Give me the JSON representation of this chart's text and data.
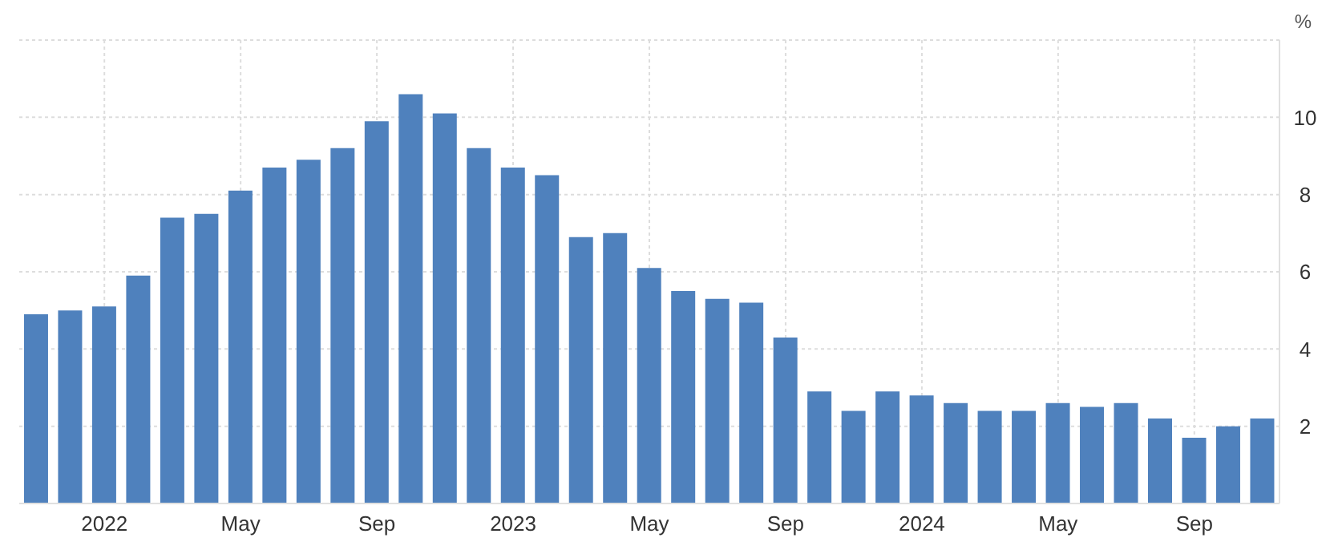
{
  "chart_data": {
    "type": "bar",
    "ylabel": "%",
    "categories": [
      null,
      null,
      "2022",
      null,
      null,
      null,
      "May",
      null,
      null,
      null,
      "Sep",
      null,
      null,
      null,
      "2023",
      null,
      null,
      null,
      "May",
      null,
      null,
      null,
      "Sep",
      null,
      null,
      null,
      "2024",
      null,
      null,
      null,
      "May",
      null,
      null,
      null,
      "Sep",
      null,
      null
    ],
    "values": [
      4.9,
      5.0,
      5.1,
      5.9,
      7.4,
      7.5,
      8.1,
      8.7,
      8.9,
      9.2,
      9.9,
      10.6,
      10.1,
      9.2,
      8.7,
      8.5,
      6.9,
      7.0,
      6.1,
      5.5,
      5.3,
      5.2,
      4.3,
      2.9,
      2.4,
      2.9,
      2.8,
      2.6,
      2.4,
      2.4,
      2.6,
      2.5,
      2.6,
      2.2,
      1.7,
      2.0,
      2.2
    ],
    "color": "#4f81bd",
    "ylim": [
      0,
      12
    ],
    "yticks": [
      2,
      4,
      6,
      8,
      10
    ],
    "grid": true,
    "legend": false
  }
}
